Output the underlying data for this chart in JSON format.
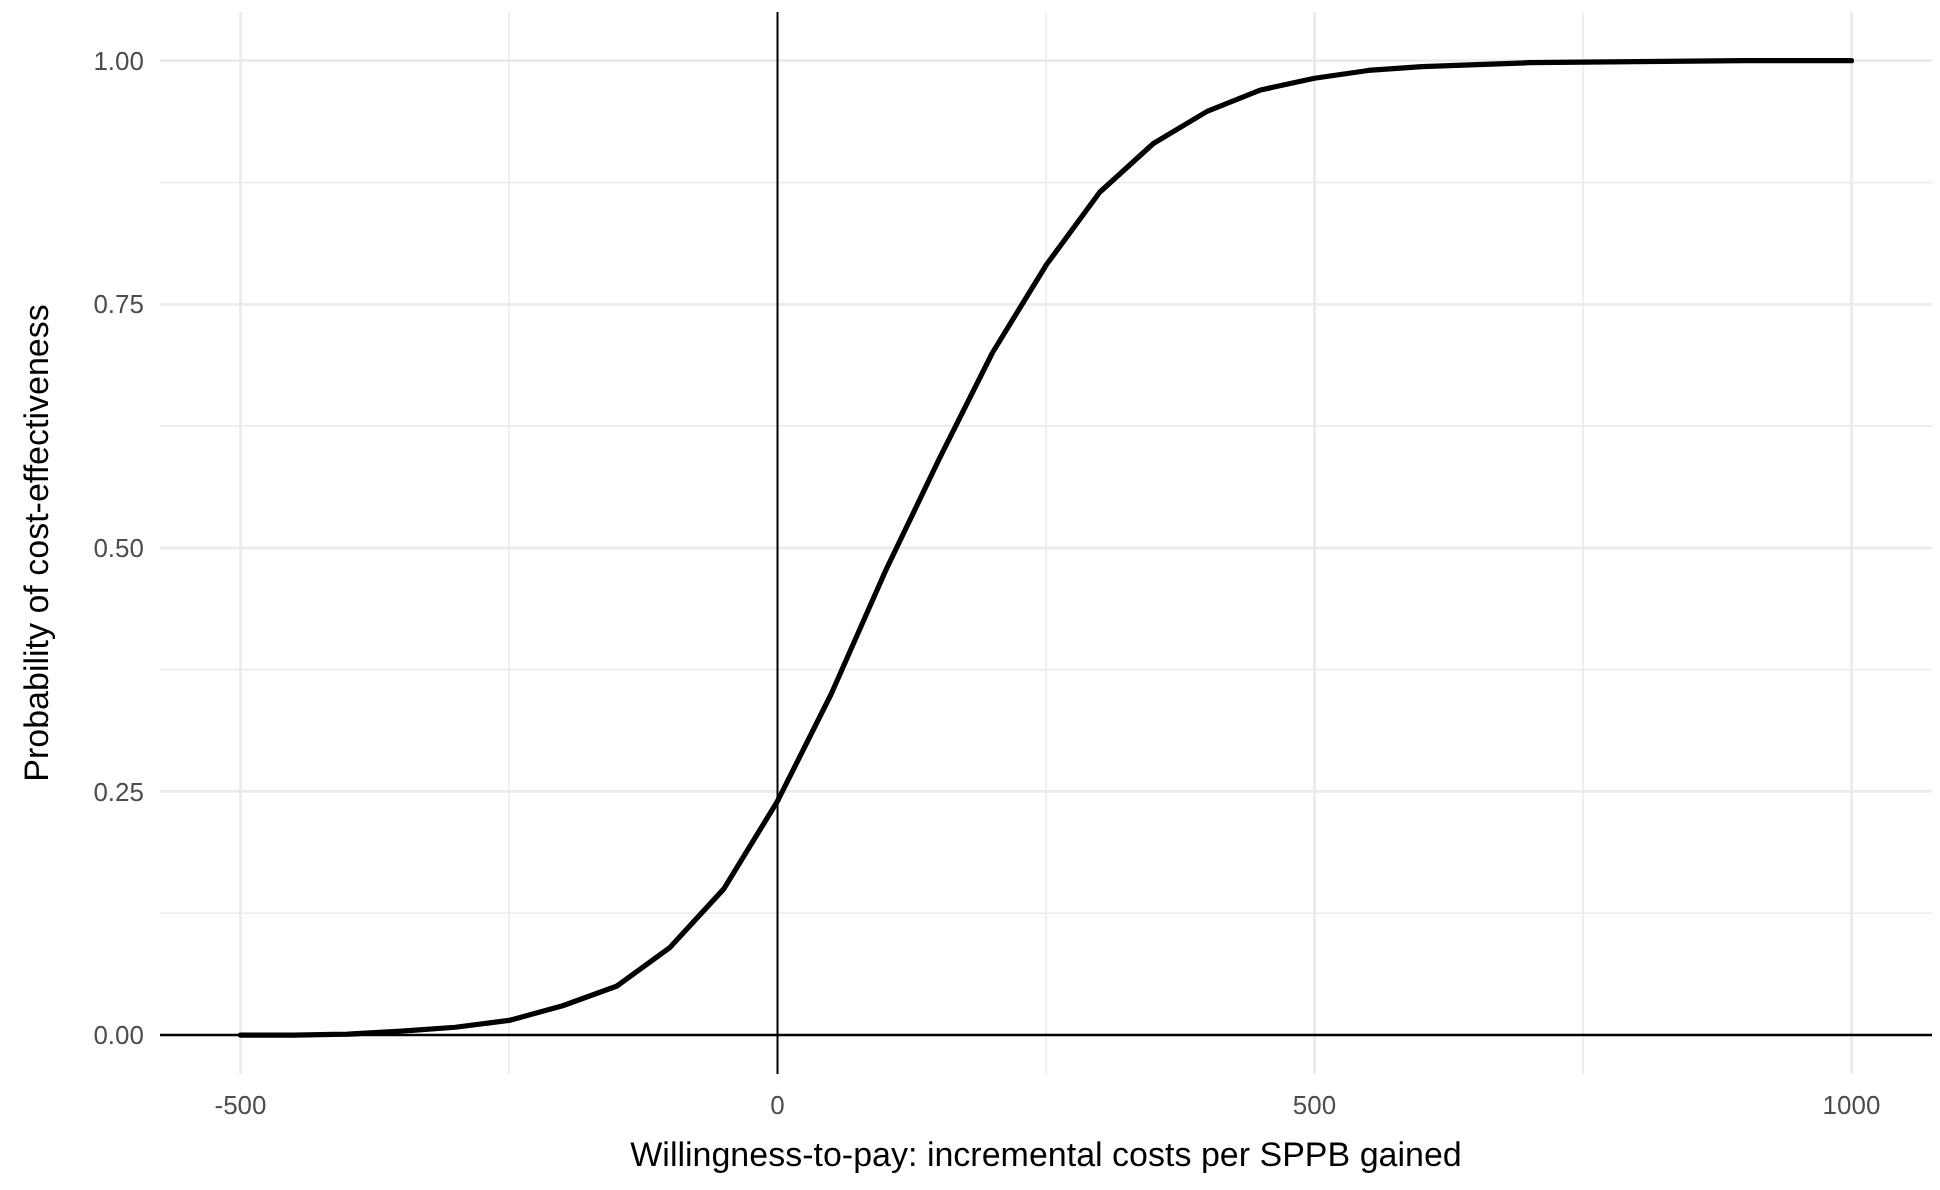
{
  "chart_data": {
    "type": "line",
    "xlabel": "Willingness-to-pay: incremental costs per SPPB gained",
    "ylabel": "Probability of cost-effectiveness",
    "x": [
      -500,
      -450,
      -400,
      -350,
      -300,
      -250,
      -200,
      -150,
      -100,
      -50,
      0,
      50,
      100,
      150,
      200,
      250,
      300,
      350,
      400,
      450,
      500,
      550,
      600,
      700,
      800,
      900,
      1000
    ],
    "series": [
      {
        "color": "#000000",
        "values": [
          0,
          0,
          0.001,
          0.004,
          0.008,
          0.015,
          0.03,
          0.05,
          0.09,
          0.15,
          0.24,
          0.35,
          0.475,
          0.59,
          0.7,
          0.79,
          0.865,
          0.915,
          0.948,
          0.97,
          0.982,
          0.99,
          0.994,
          0.998,
          0.999,
          1,
          1
        ]
      }
    ],
    "xlim": [
      -575,
      1075
    ],
    "ylim": [
      -0.04,
      1.05
    ],
    "xticks": [
      -500,
      {
        "value": -250,
        "label": null
      },
      0,
      {
        "value": 250,
        "label": null
      },
      500,
      {
        "value": 750,
        "label": null
      },
      1000
    ],
    "yticks": [
      {
        "value": 0,
        "label": "0.00"
      },
      {
        "value": 0.125,
        "label": null
      },
      {
        "value": 0.25,
        "label": "0.25"
      },
      {
        "value": 0.375,
        "label": null
      },
      {
        "value": 0.5,
        "label": "0.50"
      },
      {
        "value": 0.625,
        "label": null
      },
      {
        "value": 0.75,
        "label": "0.75"
      },
      {
        "value": 0.875,
        "label": null
      },
      {
        "value": 1,
        "label": "1.00"
      }
    ],
    "grid": true,
    "marker": "none",
    "line_style": "solid",
    "ref_lines": [
      {
        "axis": "x",
        "value": 0,
        "color": "#000000"
      }
    ]
  }
}
